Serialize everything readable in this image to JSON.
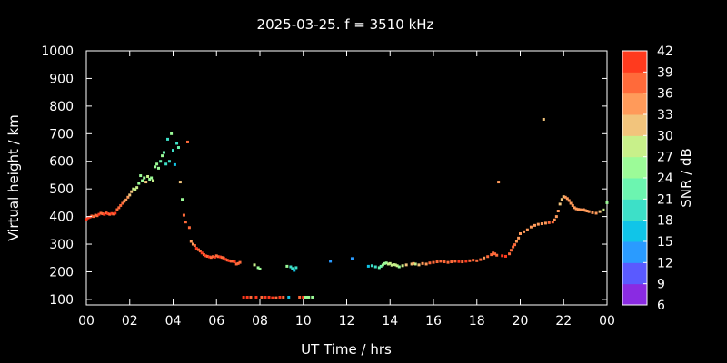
{
  "chart_data": {
    "type": "scatter",
    "title": "2025-03-25. f = 3510 kHz",
    "xlabel": "UT Time / hrs",
    "ylabel": "Virtual height / km",
    "colorbar_label": "SNR / dB",
    "xlim": [
      0,
      24
    ],
    "ylim": [
      80,
      1000
    ],
    "x_ticks": [
      "00",
      "02",
      "04",
      "06",
      "08",
      "10",
      "12",
      "14",
      "16",
      "18",
      "20",
      "22",
      "00"
    ],
    "y_ticks": [
      "100",
      "200",
      "300",
      "400",
      "500",
      "600",
      "700",
      "800",
      "900",
      "1000"
    ],
    "colorbar_ticks": [
      "6",
      "9",
      "12",
      "15",
      "18",
      "21",
      "24",
      "27",
      "30",
      "33",
      "36",
      "39",
      "42"
    ],
    "colorbar_colors": [
      "#8a2be2",
      "#5a5aff",
      "#2a9bff",
      "#10c5e8",
      "#3de0c8",
      "#6cf5b0",
      "#9cfb98",
      "#c8f08a",
      "#f2c47c",
      "#ff9a5a",
      "#ff6a3a",
      "#ff3a1e"
    ],
    "grid": false,
    "points": [
      [
        0.0,
        390,
        39
      ],
      [
        0.08,
        395,
        39
      ],
      [
        0.17,
        398,
        39
      ],
      [
        0.25,
        402,
        38
      ],
      [
        0.33,
        400,
        38
      ],
      [
        0.42,
        405,
        37
      ],
      [
        0.5,
        403,
        38
      ],
      [
        0.58,
        408,
        39
      ],
      [
        0.67,
        412,
        38
      ],
      [
        0.75,
        410,
        38
      ],
      [
        0.83,
        408,
        39
      ],
      [
        0.92,
        413,
        38
      ],
      [
        1.0,
        410,
        39
      ],
      [
        1.08,
        408,
        38
      ],
      [
        1.17,
        411,
        39
      ],
      [
        1.25,
        409,
        38
      ],
      [
        1.33,
        412,
        39
      ],
      [
        1.42,
        425,
        38
      ],
      [
        1.5,
        432,
        37
      ],
      [
        1.58,
        440,
        37
      ],
      [
        1.67,
        448,
        36
      ],
      [
        1.75,
        455,
        35
      ],
      [
        1.83,
        460,
        35
      ],
      [
        1.92,
        470,
        33
      ],
      [
        2.0,
        478,
        32
      ],
      [
        2.08,
        490,
        30
      ],
      [
        2.17,
        500,
        29
      ],
      [
        2.25,
        498,
        28
      ],
      [
        2.33,
        505,
        27
      ],
      [
        2.42,
        520,
        26
      ],
      [
        2.5,
        548,
        25
      ],
      [
        2.58,
        530,
        25
      ],
      [
        2.67,
        540,
        24
      ],
      [
        2.75,
        525,
        30
      ],
      [
        2.83,
        545,
        27
      ],
      [
        2.92,
        535,
        26
      ],
      [
        3.0,
        540,
        25
      ],
      [
        3.08,
        530,
        29
      ],
      [
        3.17,
        580,
        25
      ],
      [
        3.25,
        590,
        24
      ],
      [
        3.33,
        575,
        24
      ],
      [
        3.42,
        600,
        23
      ],
      [
        3.5,
        620,
        24
      ],
      [
        3.58,
        632,
        22
      ],
      [
        3.67,
        590,
        19
      ],
      [
        3.75,
        680,
        19
      ],
      [
        3.83,
        600,
        18
      ],
      [
        3.92,
        700,
        25
      ],
      [
        4.0,
        640,
        18
      ],
      [
        4.08,
        588,
        17
      ],
      [
        4.17,
        665,
        20
      ],
      [
        4.25,
        650,
        21
      ],
      [
        4.33,
        525,
        30
      ],
      [
        4.42,
        462,
        24
      ],
      [
        4.5,
        405,
        37
      ],
      [
        4.58,
        380,
        38
      ],
      [
        4.67,
        670,
        36
      ],
      [
        4.75,
        360,
        37
      ],
      [
        4.83,
        310,
        33
      ],
      [
        4.92,
        300,
        35
      ],
      [
        5.0,
        295,
        38
      ],
      [
        5.08,
        285,
        39
      ],
      [
        5.17,
        280,
        37
      ],
      [
        5.25,
        275,
        38
      ],
      [
        5.33,
        268,
        39
      ],
      [
        5.42,
        262,
        38
      ],
      [
        5.5,
        258,
        39
      ],
      [
        5.58,
        256,
        38
      ],
      [
        5.67,
        254,
        39
      ],
      [
        5.75,
        252,
        37
      ],
      [
        5.83,
        255,
        38
      ],
      [
        5.92,
        253,
        39
      ],
      [
        6.0,
        258,
        38
      ],
      [
        6.08,
        255,
        37
      ],
      [
        6.17,
        254,
        39
      ],
      [
        6.25,
        252,
        38
      ],
      [
        6.33,
        250,
        38
      ],
      [
        6.42,
        245,
        39
      ],
      [
        6.5,
        242,
        38
      ],
      [
        6.58,
        240,
        39
      ],
      [
        6.67,
        238,
        37
      ],
      [
        6.75,
        238,
        38
      ],
      [
        6.83,
        236,
        39
      ],
      [
        6.92,
        228,
        38
      ],
      [
        7.0,
        230,
        38
      ],
      [
        7.08,
        234,
        37
      ],
      [
        7.25,
        108,
        39
      ],
      [
        7.42,
        108,
        39
      ],
      [
        7.58,
        108,
        38
      ],
      [
        7.75,
        225,
        27
      ],
      [
        7.83,
        108,
        39
      ],
      [
        7.92,
        215,
        26
      ],
      [
        8.0,
        210,
        24
      ],
      [
        8.08,
        108,
        38
      ],
      [
        8.25,
        108,
        39
      ],
      [
        8.42,
        108,
        39
      ],
      [
        8.58,
        106,
        39
      ],
      [
        8.75,
        106,
        38
      ],
      [
        8.92,
        108,
        39
      ],
      [
        9.08,
        108,
        38
      ],
      [
        9.25,
        220,
        24
      ],
      [
        9.33,
        108,
        15
      ],
      [
        9.42,
        218,
        20
      ],
      [
        9.5,
        212,
        18
      ],
      [
        9.58,
        205,
        15
      ],
      [
        9.67,
        215,
        20
      ],
      [
        9.83,
        108,
        38
      ],
      [
        10.0,
        108,
        39
      ],
      [
        10.08,
        108,
        26
      ],
      [
        10.17,
        108,
        25
      ],
      [
        10.25,
        108,
        24
      ],
      [
        10.42,
        108,
        24
      ],
      [
        11.25,
        238,
        12
      ],
      [
        12.25,
        248,
        12
      ],
      [
        13.0,
        220,
        17
      ],
      [
        13.17,
        222,
        18
      ],
      [
        13.33,
        218,
        20
      ],
      [
        13.5,
        215,
        21
      ],
      [
        13.58,
        220,
        23
      ],
      [
        13.67,
        225,
        24
      ],
      [
        13.75,
        230,
        25
      ],
      [
        13.83,
        232,
        26
      ],
      [
        13.92,
        228,
        27
      ],
      [
        14.0,
        230,
        27
      ],
      [
        14.08,
        224,
        28
      ],
      [
        14.17,
        226,
        29
      ],
      [
        14.25,
        225,
        28
      ],
      [
        14.33,
        222,
        27
      ],
      [
        14.42,
        218,
        26
      ],
      [
        14.58,
        222,
        28
      ],
      [
        14.75,
        225,
        30
      ],
      [
        15.0,
        228,
        32
      ],
      [
        15.08,
        230,
        33
      ],
      [
        15.17,
        228,
        29
      ],
      [
        15.33,
        225,
        31
      ],
      [
        15.5,
        230,
        34
      ],
      [
        15.67,
        228,
        35
      ],
      [
        15.83,
        232,
        36
      ],
      [
        16.0,
        234,
        36
      ],
      [
        16.17,
        236,
        37
      ],
      [
        16.33,
        238,
        36
      ],
      [
        16.5,
        236,
        38
      ],
      [
        16.67,
        234,
        37
      ],
      [
        16.83,
        236,
        38
      ],
      [
        17.0,
        238,
        38
      ],
      [
        17.17,
        237,
        39
      ],
      [
        17.33,
        236,
        38
      ],
      [
        17.5,
        238,
        39
      ],
      [
        17.67,
        240,
        38
      ],
      [
        17.83,
        242,
        37
      ],
      [
        18.0,
        240,
        38
      ],
      [
        18.17,
        244,
        36
      ],
      [
        18.33,
        250,
        35
      ],
      [
        18.5,
        255,
        36
      ],
      [
        18.67,
        262,
        37
      ],
      [
        18.75,
        268,
        38
      ],
      [
        18.83,
        265,
        37
      ],
      [
        18.92,
        260,
        38
      ],
      [
        19.0,
        525,
        33
      ],
      [
        19.17,
        258,
        39
      ],
      [
        19.33,
        256,
        40
      ],
      [
        19.5,
        265,
        38
      ],
      [
        19.58,
        278,
        37
      ],
      [
        19.67,
        290,
        36
      ],
      [
        19.75,
        298,
        37
      ],
      [
        19.83,
        310,
        35
      ],
      [
        19.92,
        322,
        35
      ],
      [
        20.0,
        338,
        34
      ],
      [
        20.17,
        345,
        33
      ],
      [
        20.33,
        352,
        33
      ],
      [
        20.5,
        362,
        34
      ],
      [
        20.67,
        368,
        34
      ],
      [
        20.83,
        372,
        35
      ],
      [
        21.0,
        374,
        35
      ],
      [
        21.08,
        752,
        31
      ],
      [
        21.17,
        376,
        35
      ],
      [
        21.33,
        378,
        36
      ],
      [
        21.5,
        380,
        36
      ],
      [
        21.58,
        388,
        35
      ],
      [
        21.67,
        400,
        34
      ],
      [
        21.75,
        420,
        33
      ],
      [
        21.83,
        445,
        32
      ],
      [
        21.92,
        462,
        31
      ],
      [
        22.0,
        472,
        31
      ],
      [
        22.08,
        470,
        33
      ],
      [
        22.17,
        465,
        33
      ],
      [
        22.25,
        458,
        33
      ],
      [
        22.33,
        448,
        33
      ],
      [
        22.42,
        440,
        33
      ],
      [
        22.5,
        432,
        34
      ],
      [
        22.58,
        428,
        34
      ],
      [
        22.67,
        426,
        34
      ],
      [
        22.75,
        425,
        34
      ],
      [
        22.83,
        424,
        33
      ],
      [
        22.92,
        425,
        33
      ],
      [
        23.0,
        422,
        34
      ],
      [
        23.08,
        420,
        33
      ],
      [
        23.17,
        418,
        33
      ],
      [
        23.33,
        414,
        33
      ],
      [
        23.5,
        412,
        33
      ],
      [
        23.67,
        418,
        32
      ],
      [
        23.83,
        424,
        27
      ],
      [
        24.0,
        450,
        24
      ]
    ]
  }
}
